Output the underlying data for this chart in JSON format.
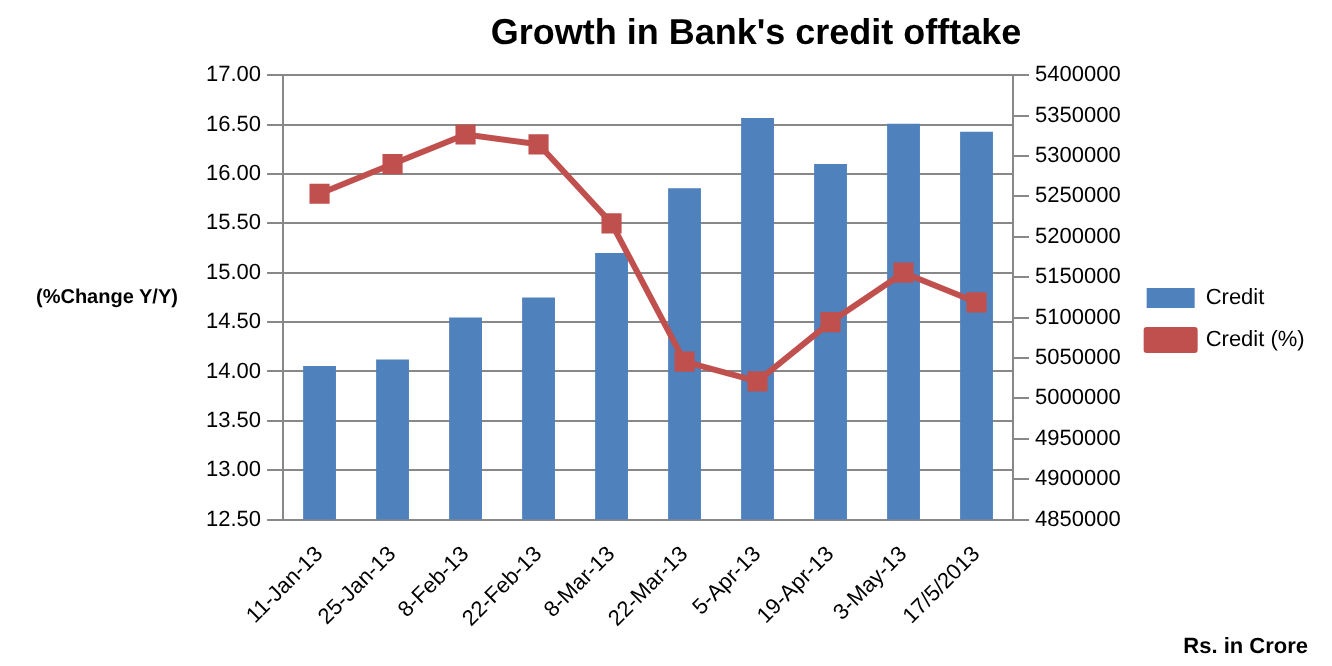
{
  "chart_data": {
    "type": "bar",
    "title": "Growth in Bank's credit offtake",
    "ylabel": "(%Change Y/Y)",
    "annotations": [
      "Rs. in Crore"
    ],
    "categories": [
      "11-Jan-13",
      "25-Jan-13",
      "8-Feb-13",
      "22-Feb-13",
      "8-Mar-13",
      "22-Mar-13",
      "5-Apr-13",
      "19-Apr-13",
      "3-May-13",
      "17/5/2013"
    ],
    "series": [
      {
        "name": "Credit",
        "axis": "y2",
        "color": "#4f81bd",
        "values": [
          5040000,
          5048000,
          5100000,
          5125000,
          5180000,
          5260000,
          5347000,
          5290000,
          5340000,
          5330000
        ]
      },
      {
        "name": "Credit (%)",
        "type": "line",
        "axis": "y",
        "color": "#c0504d",
        "marker": "square",
        "values": [
          15.8,
          16.1,
          16.4,
          16.3,
          15.5,
          14.1,
          13.9,
          14.5,
          15.0,
          14.7
        ]
      }
    ],
    "ylim": [
      12.5,
      17
    ],
    "yticks": [
      {
        "value": 12.5,
        "label": "12.50"
      },
      {
        "value": 13,
        "label": "13.00"
      },
      {
        "value": 13.5,
        "label": "13.50"
      },
      {
        "value": 14,
        "label": "14.00"
      },
      {
        "value": 14.5,
        "label": "14.50"
      },
      {
        "value": 15,
        "label": "15.00"
      },
      {
        "value": 15.5,
        "label": "15.50"
      },
      {
        "value": 16,
        "label": "16.00"
      },
      {
        "value": 16.5,
        "label": "16.50"
      },
      {
        "value": 17,
        "label": "17.00"
      }
    ],
    "y2lim": [
      4850000,
      5400000
    ],
    "y2ticks": [
      4850000,
      4900000,
      4950000,
      5000000,
      5050000,
      5100000,
      5150000,
      5200000,
      5250000,
      5300000,
      5350000,
      5400000
    ],
    "grid": "y",
    "legend": "right"
  }
}
